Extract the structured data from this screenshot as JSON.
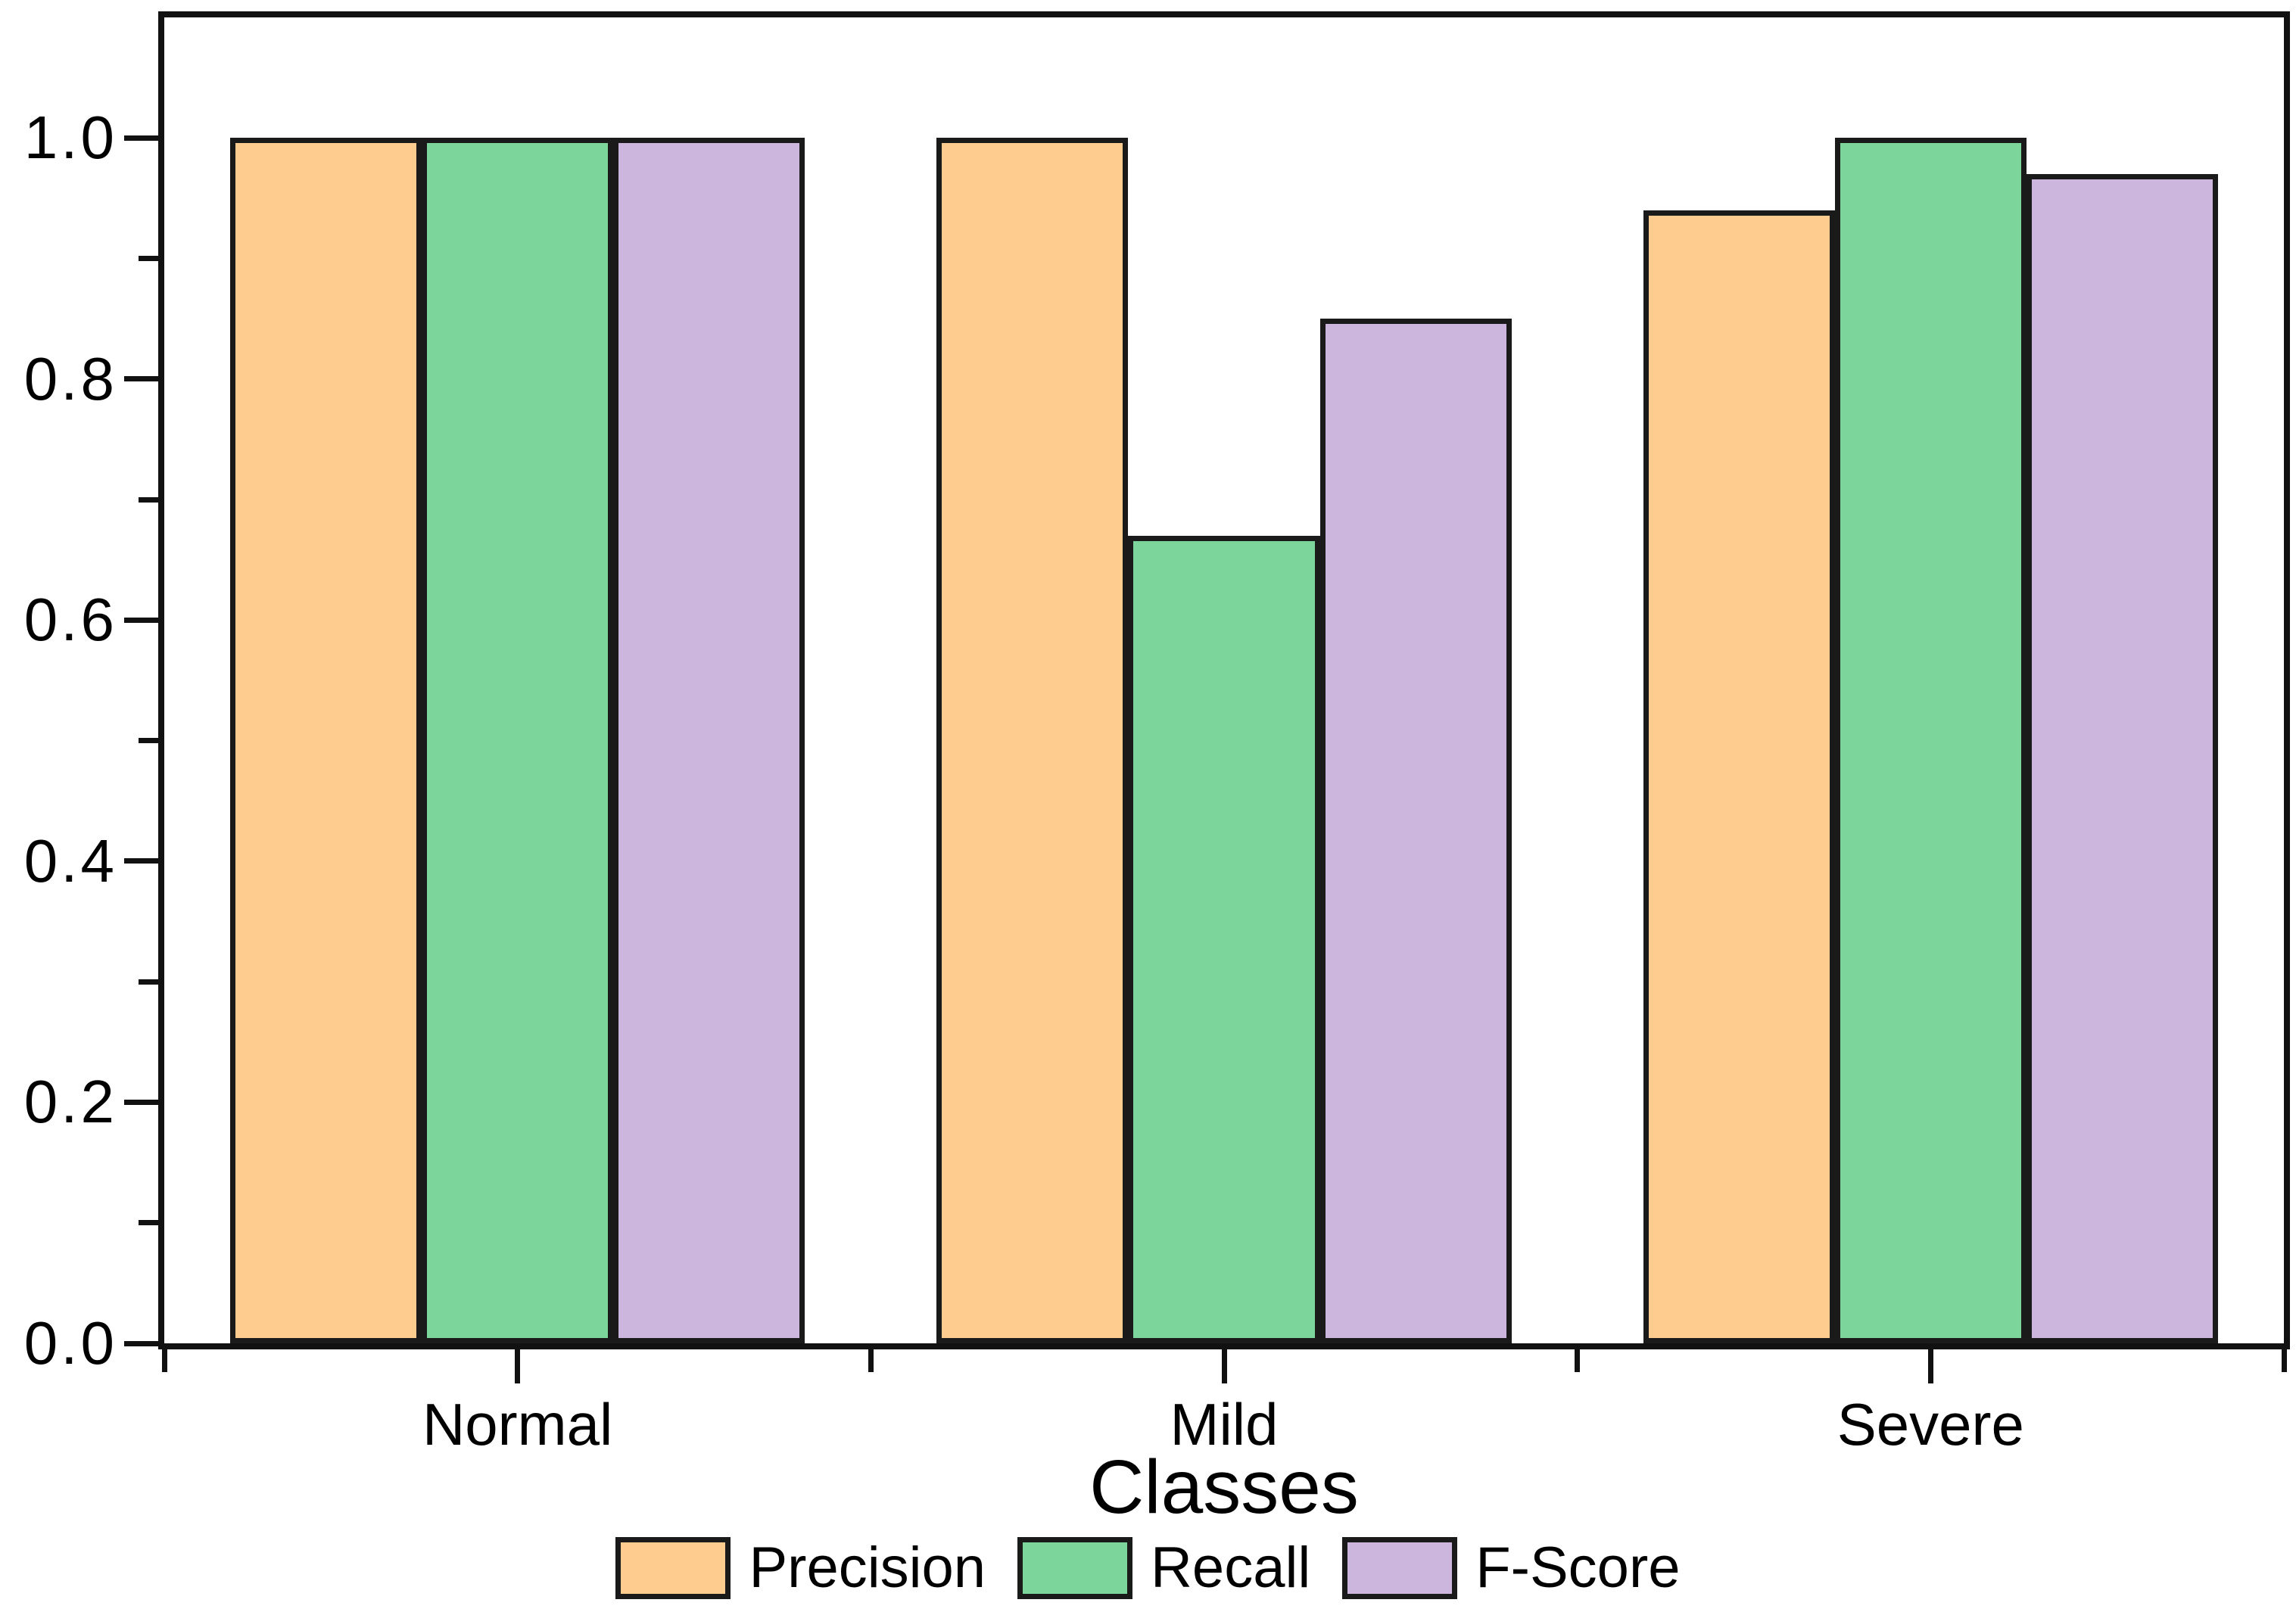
{
  "chart_data": {
    "type": "bar",
    "title": "",
    "xlabel": "Classes",
    "ylabel": "",
    "categories": [
      "Normal",
      "Mild",
      "Severe"
    ],
    "series": [
      {
        "name": "Precision",
        "color": "#FDCC8E",
        "values": [
          1.0,
          1.0,
          0.94
        ]
      },
      {
        "name": "Recall",
        "color": "#7CD59B",
        "values": [
          1.0,
          0.67,
          1.0
        ]
      },
      {
        "name": "F-Score",
        "color": "#CCB6DE",
        "values": [
          1.0,
          0.85,
          0.97
        ]
      }
    ],
    "ylim": [
      0.0,
      1.1
    ],
    "y_ticks": [
      {
        "label": "0.0",
        "value": 0.0
      },
      {
        "label": "0.2",
        "value": 0.2
      },
      {
        "label": "0.4",
        "value": 0.4
      },
      {
        "label": "0.6",
        "value": 0.6
      },
      {
        "label": "0.8",
        "value": 0.8
      },
      {
        "label": "1.0",
        "value": 1.0
      }
    ],
    "y_minor_ticks": [
      0.1,
      0.3,
      0.5,
      0.7,
      0.9
    ],
    "bar_edge_color": "#1a1a1a",
    "axis_color": "#111111",
    "grid": false,
    "legend_position": "bottom"
  }
}
